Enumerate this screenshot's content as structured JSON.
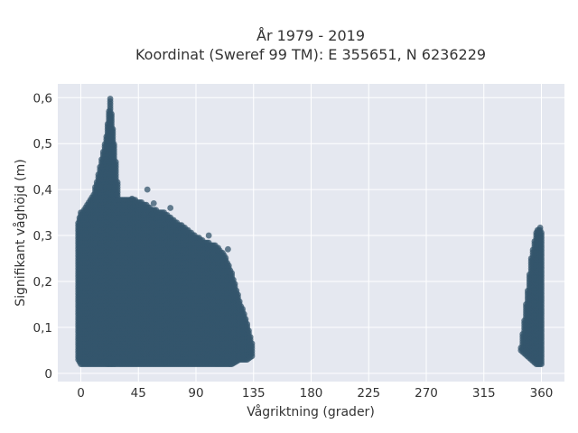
{
  "chart_data": {
    "type": "scatter",
    "title": "År 1979 - 2019",
    "subtitle": "Koordinat (Sweref 99 TM): E 355651, N 6236229",
    "xlabel": "Vågriktning (grader)",
    "ylabel": "Signifikant våghöjd (m)",
    "xlim": [
      -18,
      378
    ],
    "ylim": [
      -0.018,
      0.63
    ],
    "x_ticks": [
      0,
      45,
      90,
      135,
      180,
      225,
      270,
      315,
      360
    ],
    "x_tick_labels": [
      "0",
      "45",
      "90",
      "135",
      "180",
      "225",
      "270",
      "315",
      "360"
    ],
    "y_ticks": [
      0,
      0.1,
      0.2,
      0.3,
      0.4,
      0.5,
      0.6
    ],
    "y_tick_labels": [
      "0",
      "0,1",
      "0,2",
      "0,3",
      "0,4",
      "0,5",
      "0,6"
    ],
    "grid": true,
    "marker_color": "#34566c",
    "background_color": "#e5e8f0",
    "envelope": [
      {
        "x": -2,
        "y_min": 0.03,
        "y_max": 0.33
      },
      {
        "x": 0,
        "y_min": 0.02,
        "y_max": 0.35
      },
      {
        "x": 5,
        "y_min": 0.02,
        "y_max": 0.37
      },
      {
        "x": 10,
        "y_min": 0.02,
        "y_max": 0.39
      },
      {
        "x": 15,
        "y_min": 0.02,
        "y_max": 0.45
      },
      {
        "x": 20,
        "y_min": 0.02,
        "y_max": 0.52
      },
      {
        "x": 23,
        "y_min": 0.02,
        "y_max": 0.6
      },
      {
        "x": 26,
        "y_min": 0.02,
        "y_max": 0.5
      },
      {
        "x": 30,
        "y_min": 0.02,
        "y_max": 0.38
      },
      {
        "x": 40,
        "y_min": 0.02,
        "y_max": 0.38
      },
      {
        "x": 50,
        "y_min": 0.02,
        "y_max": 0.37
      },
      {
        "x": 55,
        "y_min": 0.02,
        "y_max": 0.36
      },
      {
        "x": 65,
        "y_min": 0.02,
        "y_max": 0.35
      },
      {
        "x": 75,
        "y_min": 0.02,
        "y_max": 0.33
      },
      {
        "x": 85,
        "y_min": 0.02,
        "y_max": 0.31
      },
      {
        "x": 95,
        "y_min": 0.02,
        "y_max": 0.29
      },
      {
        "x": 105,
        "y_min": 0.02,
        "y_max": 0.28
      },
      {
        "x": 112,
        "y_min": 0.02,
        "y_max": 0.26
      },
      {
        "x": 118,
        "y_min": 0.02,
        "y_max": 0.22
      },
      {
        "x": 124,
        "y_min": 0.03,
        "y_max": 0.16
      },
      {
        "x": 130,
        "y_min": 0.03,
        "y_max": 0.11
      },
      {
        "x": 135,
        "y_min": 0.04,
        "y_max": 0.05
      },
      {
        "x": 344,
        "y_min": 0.05,
        "y_max": 0.06
      },
      {
        "x": 348,
        "y_min": 0.04,
        "y_max": 0.15
      },
      {
        "x": 352,
        "y_min": 0.03,
        "y_max": 0.25
      },
      {
        "x": 356,
        "y_min": 0.02,
        "y_max": 0.31
      },
      {
        "x": 359,
        "y_min": 0.02,
        "y_max": 0.32
      },
      {
        "x": 361,
        "y_min": 0.02,
        "y_max": 0.3
      }
    ],
    "outliers": [
      {
        "x": 26,
        "y": 0.45
      },
      {
        "x": 28,
        "y": 0.39
      },
      {
        "x": 52,
        "y": 0.4
      },
      {
        "x": 57,
        "y": 0.37
      },
      {
        "x": 70,
        "y": 0.36
      },
      {
        "x": 40,
        "y": 0.38
      },
      {
        "x": 100,
        "y": 0.3
      },
      {
        "x": 115,
        "y": 0.27
      }
    ]
  }
}
